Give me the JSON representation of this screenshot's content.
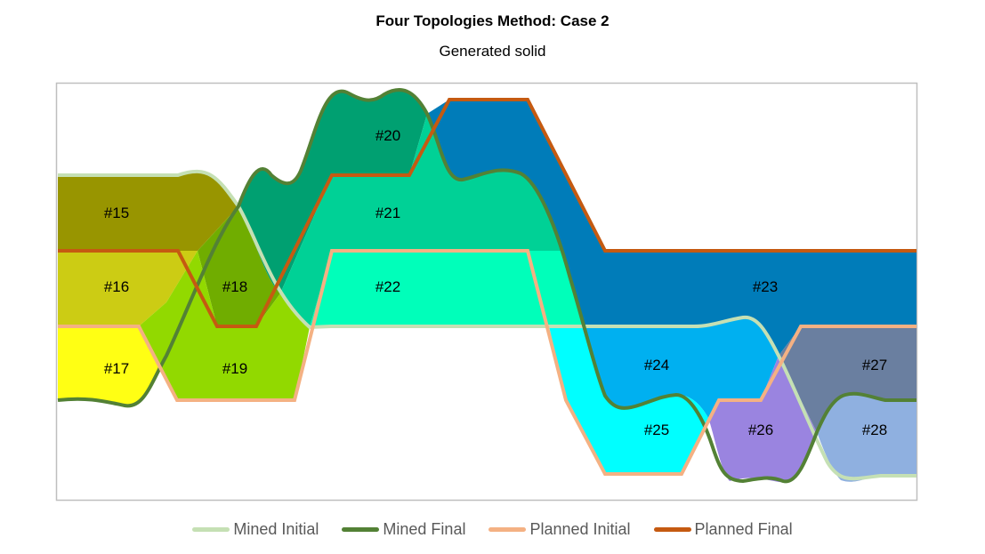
{
  "title": "Four Topologies Method: Case 2",
  "subtitle": "Generated solid",
  "chart_data": {
    "type": "area",
    "title": "Four Topologies Method: Case 2",
    "subtitle": "Generated solid",
    "legend_position": "bottom",
    "series": [
      {
        "name": "Mined Initial",
        "color": "#c5e0b4"
      },
      {
        "name": "Mined Final",
        "color": "#538135"
      },
      {
        "name": "Planned Initial",
        "color": "#f4b183"
      },
      {
        "name": "Planned Final",
        "color": "#c55a11"
      }
    ],
    "regions": [
      {
        "label": "#15",
        "color": "#989500"
      },
      {
        "label": "#16",
        "color": "#cccc14"
      },
      {
        "label": "#17",
        "color": "#ffff14"
      },
      {
        "label": "#18",
        "color": "#70ad00"
      },
      {
        "label": "#19",
        "color": "#92d900"
      },
      {
        "label": "#20",
        "color": "#00a071"
      },
      {
        "label": "#21",
        "color": "#00d196"
      },
      {
        "label": "#22",
        "color": "#00ffba"
      },
      {
        "label": "#23",
        "color": "#007cb9"
      },
      {
        "label": "#24",
        "color": "#00b0f0"
      },
      {
        "label": "#25",
        "color": "#00ffff"
      },
      {
        "label": "#26",
        "color": "#9a84e0"
      },
      {
        "label": "#27",
        "color": "#6a7fa0"
      },
      {
        "label": "#28",
        "color": "#8fb0e0"
      }
    ]
  }
}
